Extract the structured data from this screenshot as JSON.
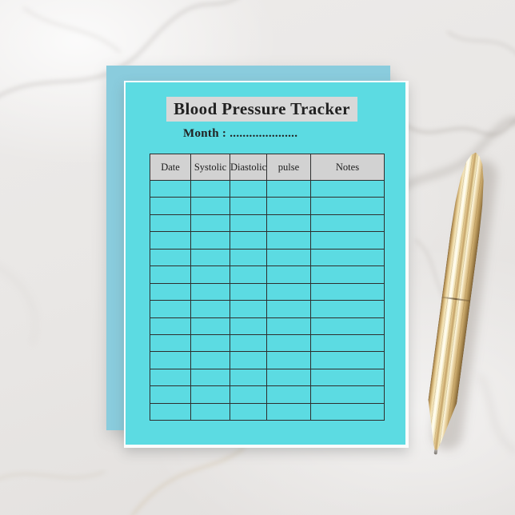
{
  "title": "Blood Pressure Tracker",
  "month_label": "Month : .....................",
  "table": {
    "columns": [
      "Date",
      "Systolic",
      "Diastolic",
      "pulse",
      "Notes"
    ],
    "empty_row_count": 14
  },
  "colors": {
    "front_card": "#5cdbe2",
    "back_card": "#8accdd",
    "underlay": "#fbfcfc",
    "title_strip_bg": "#d8d8d8",
    "header_bg": "#d2d2d2",
    "grid_line": "#2e2e2e",
    "text": "#212121",
    "marble_base": "#e9e7e5",
    "pen_gold": "#dfc189",
    "pen_gold_dark": "#8f7040",
    "pen_gold_light": "#fffef4"
  }
}
